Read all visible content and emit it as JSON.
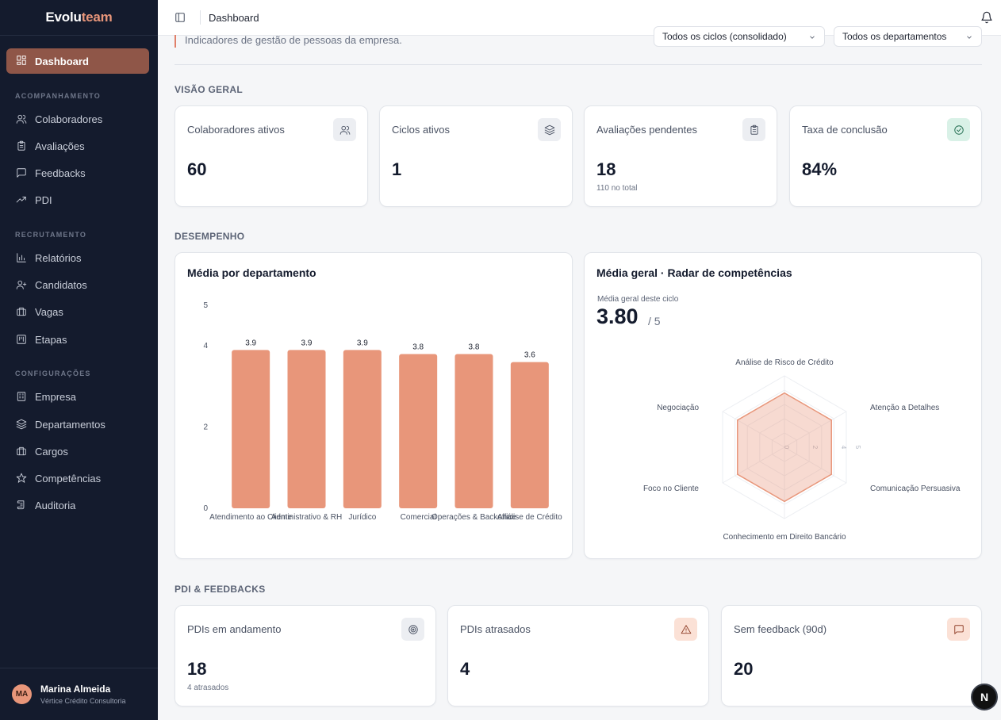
{
  "brand": {
    "part1": "Evolu",
    "part2": "team"
  },
  "sidebar": {
    "active": {
      "label": "Dashboard"
    },
    "sections": [
      {
        "title": "ACOMPANHAMENTO",
        "items": [
          "Colaboradores",
          "Avaliações",
          "Feedbacks",
          "PDI"
        ]
      },
      {
        "title": "RECRUTAMENTO",
        "items": [
          "Relatórios",
          "Candidatos",
          "Vagas",
          "Etapas"
        ]
      },
      {
        "title": "CONFIGURAÇÕES",
        "items": [
          "Empresa",
          "Departamentos",
          "Cargos",
          "Competências",
          "Auditoria"
        ]
      }
    ]
  },
  "user": {
    "initials": "MA",
    "name": "Marina Almeida",
    "org": "Vértice Crédito Consultoria"
  },
  "topbar": {
    "breadcrumb": "Dashboard"
  },
  "header": {
    "subtitle": "Indicadores de gestão de pessoas da empresa.",
    "filter_cycles": "Todos os ciclos (consolidado)",
    "filter_departments": "Todos os departamentos"
  },
  "overview": {
    "title": "VISÃO GERAL",
    "cards": [
      {
        "label": "Colaboradores ativos",
        "value": "60",
        "icon": "users-icon"
      },
      {
        "label": "Ciclos ativos",
        "value": "1",
        "icon": "layers-icon"
      },
      {
        "label": "Avaliações pendentes",
        "value": "18",
        "note": "110 no total",
        "icon": "clipboard-icon"
      },
      {
        "label": "Taxa de conclusão",
        "value": "84%",
        "icon": "check-circle-icon"
      }
    ]
  },
  "performance": {
    "title": "DESEMPENHO",
    "bar_panel_title": "Média por departamento",
    "radar_panel_title": "Média geral · Radar de competências",
    "radar_caption": "Média geral deste ciclo",
    "radar_score": "3.80",
    "radar_score_suffix": "/ 5"
  },
  "chart_data": [
    {
      "type": "bar",
      "title": "Média por departamento",
      "categories": [
        "Atendimento ao Cliente",
        "Administrativo & RH",
        "Jurídico",
        "Comercial",
        "Operações & Backoffice",
        "Análise de Crédito"
      ],
      "values": [
        3.9,
        3.9,
        3.9,
        3.8,
        3.8,
        3.6
      ],
      "data_labels": [
        "3.9",
        "3.9",
        "3.9",
        "3.8",
        "3.8",
        "3.6"
      ],
      "yticks": [
        "0",
        "2",
        "4",
        "5"
      ],
      "ylim": [
        0,
        5
      ],
      "color": "#e8967a"
    },
    {
      "type": "radar",
      "title": "Média geral · Radar de competências",
      "axes": [
        "Análise de Risco de Crédito",
        "Atenção a Detalhes",
        "Comunicação Persuasiva",
        "Conhecimento em Direito Bancário",
        "Foco no Cliente",
        "Negociação"
      ],
      "values": [
        3.8,
        3.8,
        3.8,
        3.8,
        3.8,
        3.8
      ],
      "rlim": [
        0,
        5
      ],
      "ring_labels": [
        "0",
        "2",
        "4",
        "5"
      ],
      "color": "#e8967a"
    }
  ],
  "pdi": {
    "title": "PDI & FEEDBACKS",
    "cards": [
      {
        "label": "PDIs em andamento",
        "value": "18",
        "note": "4 atrasados",
        "icon": "target-icon"
      },
      {
        "label": "PDIs atrasados",
        "value": "4",
        "icon": "alert-triangle-icon"
      },
      {
        "label": "Sem feedback (90d)",
        "value": "20",
        "icon": "message-square-icon"
      }
    ]
  },
  "fab": {
    "label": "N"
  }
}
